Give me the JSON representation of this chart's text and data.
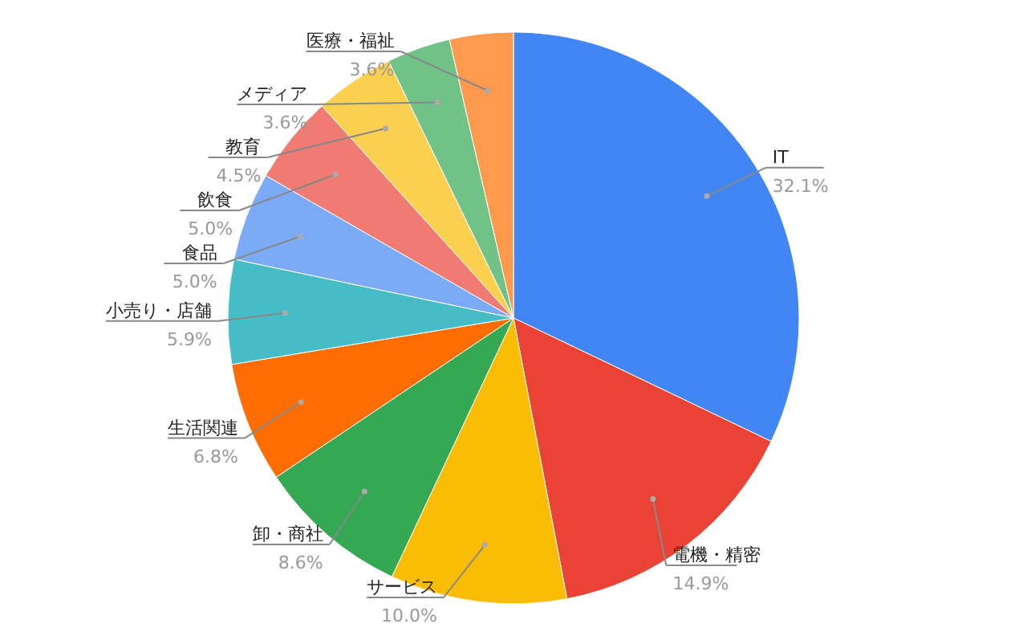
{
  "chart_data": {
    "type": "pie",
    "categories": [
      "IT",
      "電機・精密",
      "サービス",
      "卸・商社",
      "生活関連",
      "小売り・店舗",
      "食品",
      "飲食",
      "教育",
      "メディア",
      "医療・福祉"
    ],
    "values": [
      32.1,
      14.9,
      10.0,
      8.6,
      6.8,
      5.9,
      5.0,
      5.0,
      4.5,
      3.6,
      3.6
    ],
    "value_labels": [
      "32.1%",
      "14.9%",
      "10.0%",
      "8.6%",
      "6.8%",
      "5.9%",
      "5.0%",
      "5.0%",
      "4.5%",
      "3.6%",
      "3.6%"
    ],
    "colors": [
      "#4285f4",
      "#ea4335",
      "#fbbc04",
      "#34a853",
      "#ff6d01",
      "#46bdc6",
      "#7baaf7",
      "#f07b72",
      "#fcd04f",
      "#71c287",
      "#ff994d"
    ],
    "legend": false
  }
}
